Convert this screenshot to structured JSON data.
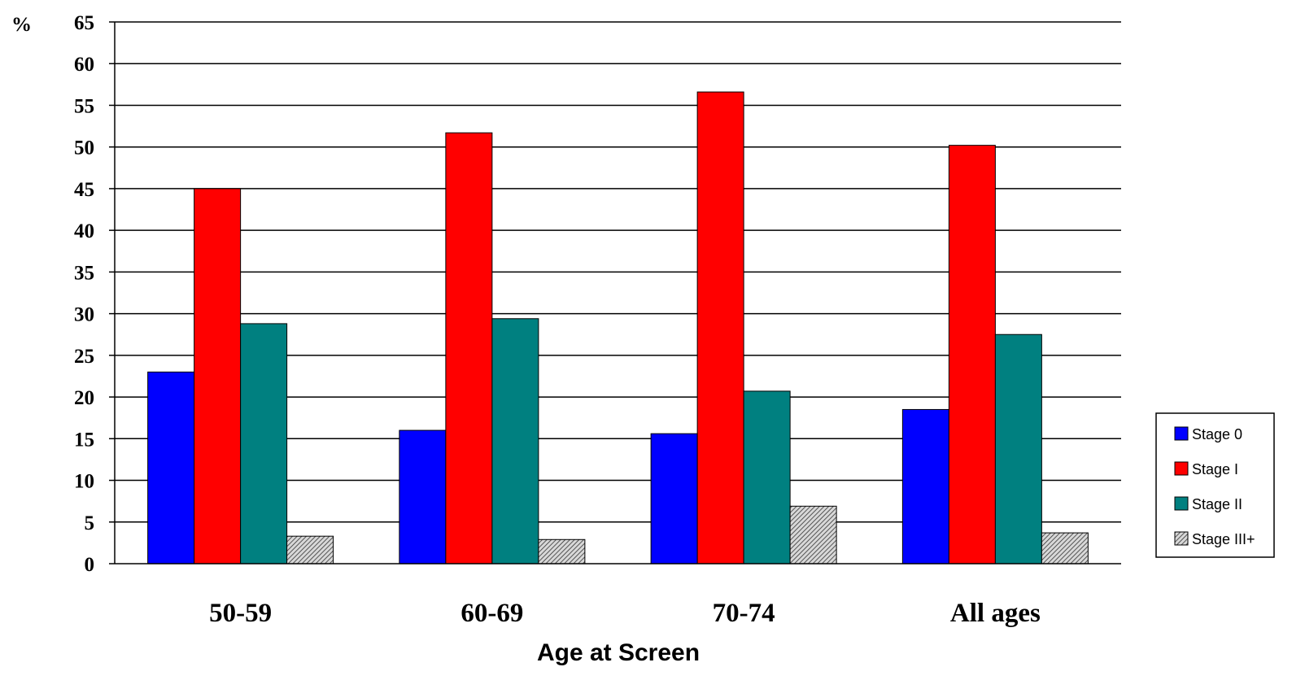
{
  "chart_data": {
    "type": "bar",
    "ylabel": "%",
    "xlabel": "Age at Screen",
    "categories": [
      "50-59",
      "60-69",
      "70-74",
      "All ages"
    ],
    "ylim": [
      0,
      65
    ],
    "yticks": [
      0,
      5,
      10,
      15,
      20,
      25,
      30,
      35,
      40,
      45,
      50,
      55,
      60,
      65
    ],
    "grid": true,
    "legend_position": "right",
    "series": [
      {
        "name": "Stage 0",
        "color": "#0000FF",
        "values": [
          23.0,
          16.0,
          15.6,
          18.5
        ]
      },
      {
        "name": "Stage I",
        "color": "#FF0000",
        "values": [
          45.0,
          51.7,
          56.6,
          50.2
        ]
      },
      {
        "name": "Stage II",
        "color": "#008080",
        "values": [
          28.8,
          29.4,
          20.7,
          27.5
        ]
      },
      {
        "name": "Stage III+",
        "color": "hatched-gray",
        "values": [
          3.3,
          2.9,
          6.9,
          3.7
        ]
      }
    ]
  }
}
